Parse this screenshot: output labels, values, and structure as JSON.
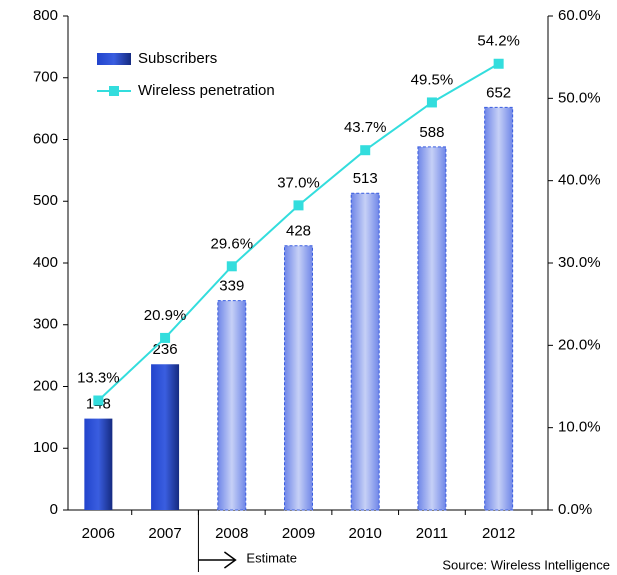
{
  "chart_data": {
    "type": "bar_line",
    "categories": [
      "2006",
      "2007",
      "2008",
      "2009",
      "2010",
      "2011",
      "2012"
    ],
    "series": [
      {
        "name": "Subscribers",
        "color": "#3a5ee0",
        "values": [
          148,
          236,
          339,
          428,
          513,
          588,
          652
        ]
      },
      {
        "name": "Wireless penetration",
        "color": "#33dddd",
        "axis": "y2",
        "values": [
          13.3,
          20.9,
          29.6,
          37.0,
          43.7,
          49.5,
          54.2
        ],
        "value_labels": [
          "13.3%",
          "20.9%",
          "29.6%",
          "37.0%",
          "43.7%",
          "49.5%",
          "54.2%"
        ]
      }
    ],
    "ylim": [
      0,
      800
    ],
    "yticks": [
      0,
      100,
      200,
      300,
      400,
      500,
      600,
      700,
      800
    ],
    "y2lim": [
      0,
      60
    ],
    "y2ticks": [
      {
        "value": 0,
        "label": "0.0%"
      },
      {
        "value": 10,
        "label": "10.0%"
      },
      {
        "value": 20,
        "label": "20.0%"
      },
      {
        "value": 30,
        "label": "30.0%"
      },
      {
        "value": 40,
        "label": "40.0%"
      },
      {
        "value": 50,
        "label": "50.0%"
      },
      {
        "value": 60,
        "label": "60.0%"
      }
    ],
    "estimate_start": "2008",
    "annotations": [
      "Estimate",
      "Source: Wireless Intelligence"
    ],
    "legend": "upper left"
  }
}
